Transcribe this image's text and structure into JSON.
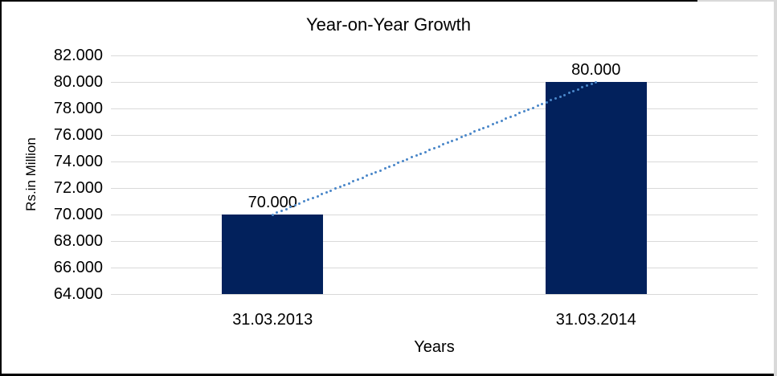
{
  "chart_data": {
    "type": "bar",
    "title": "Year-on-Year Growth",
    "xlabel": "Years",
    "ylabel": "Rs.in Million",
    "categories": [
      "31.03.2013",
      "31.03.2014"
    ],
    "values": [
      70000,
      80000
    ],
    "value_labels": [
      "70.000",
      "80.000"
    ],
    "ylim": [
      64000,
      82000
    ],
    "ytick_step": 2000,
    "ytick_labels": [
      "64.000",
      "66.000",
      "68.000",
      "70.000",
      "72.000",
      "74.000",
      "76.000",
      "78.000",
      "80.000",
      "82.000"
    ],
    "grid": true,
    "legend": "none",
    "trendline": {
      "type": "linear",
      "style": "dotted"
    },
    "colors": {
      "bar": "#02215c",
      "gridline": "#d9d9d9",
      "trendline": "#4a87c9",
      "text": "#000000",
      "outer_border": "#000000",
      "frame_border": "#d9d9d9"
    }
  }
}
